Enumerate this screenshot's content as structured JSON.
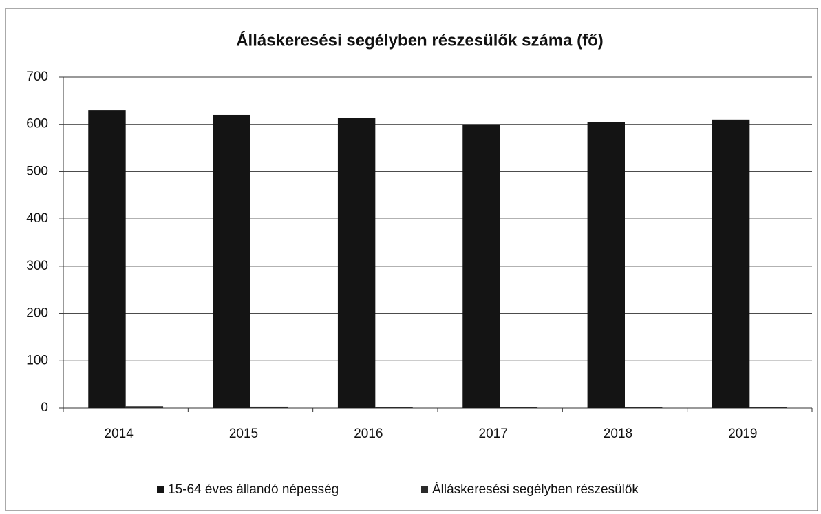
{
  "chart_data": {
    "type": "bar",
    "title": "Álláskeresési segélyben részesülők száma (fő)",
    "categories": [
      "2014",
      "2015",
      "2016",
      "2017",
      "2018",
      "2019"
    ],
    "series": [
      {
        "name": "15-64 éves állandó népesség",
        "color": "#141414",
        "values": [
          630,
          620,
          613,
          600,
          605,
          610
        ]
      },
      {
        "name": "Álláskeresési segélyben részesülők",
        "color": "#2a2a2a",
        "values": [
          4,
          3,
          2,
          2,
          2,
          2
        ]
      }
    ],
    "ylim": [
      0,
      700
    ],
    "yticks": [
      0,
      100,
      200,
      300,
      400,
      500,
      600,
      700
    ],
    "grid": true,
    "legend": "bottom"
  }
}
